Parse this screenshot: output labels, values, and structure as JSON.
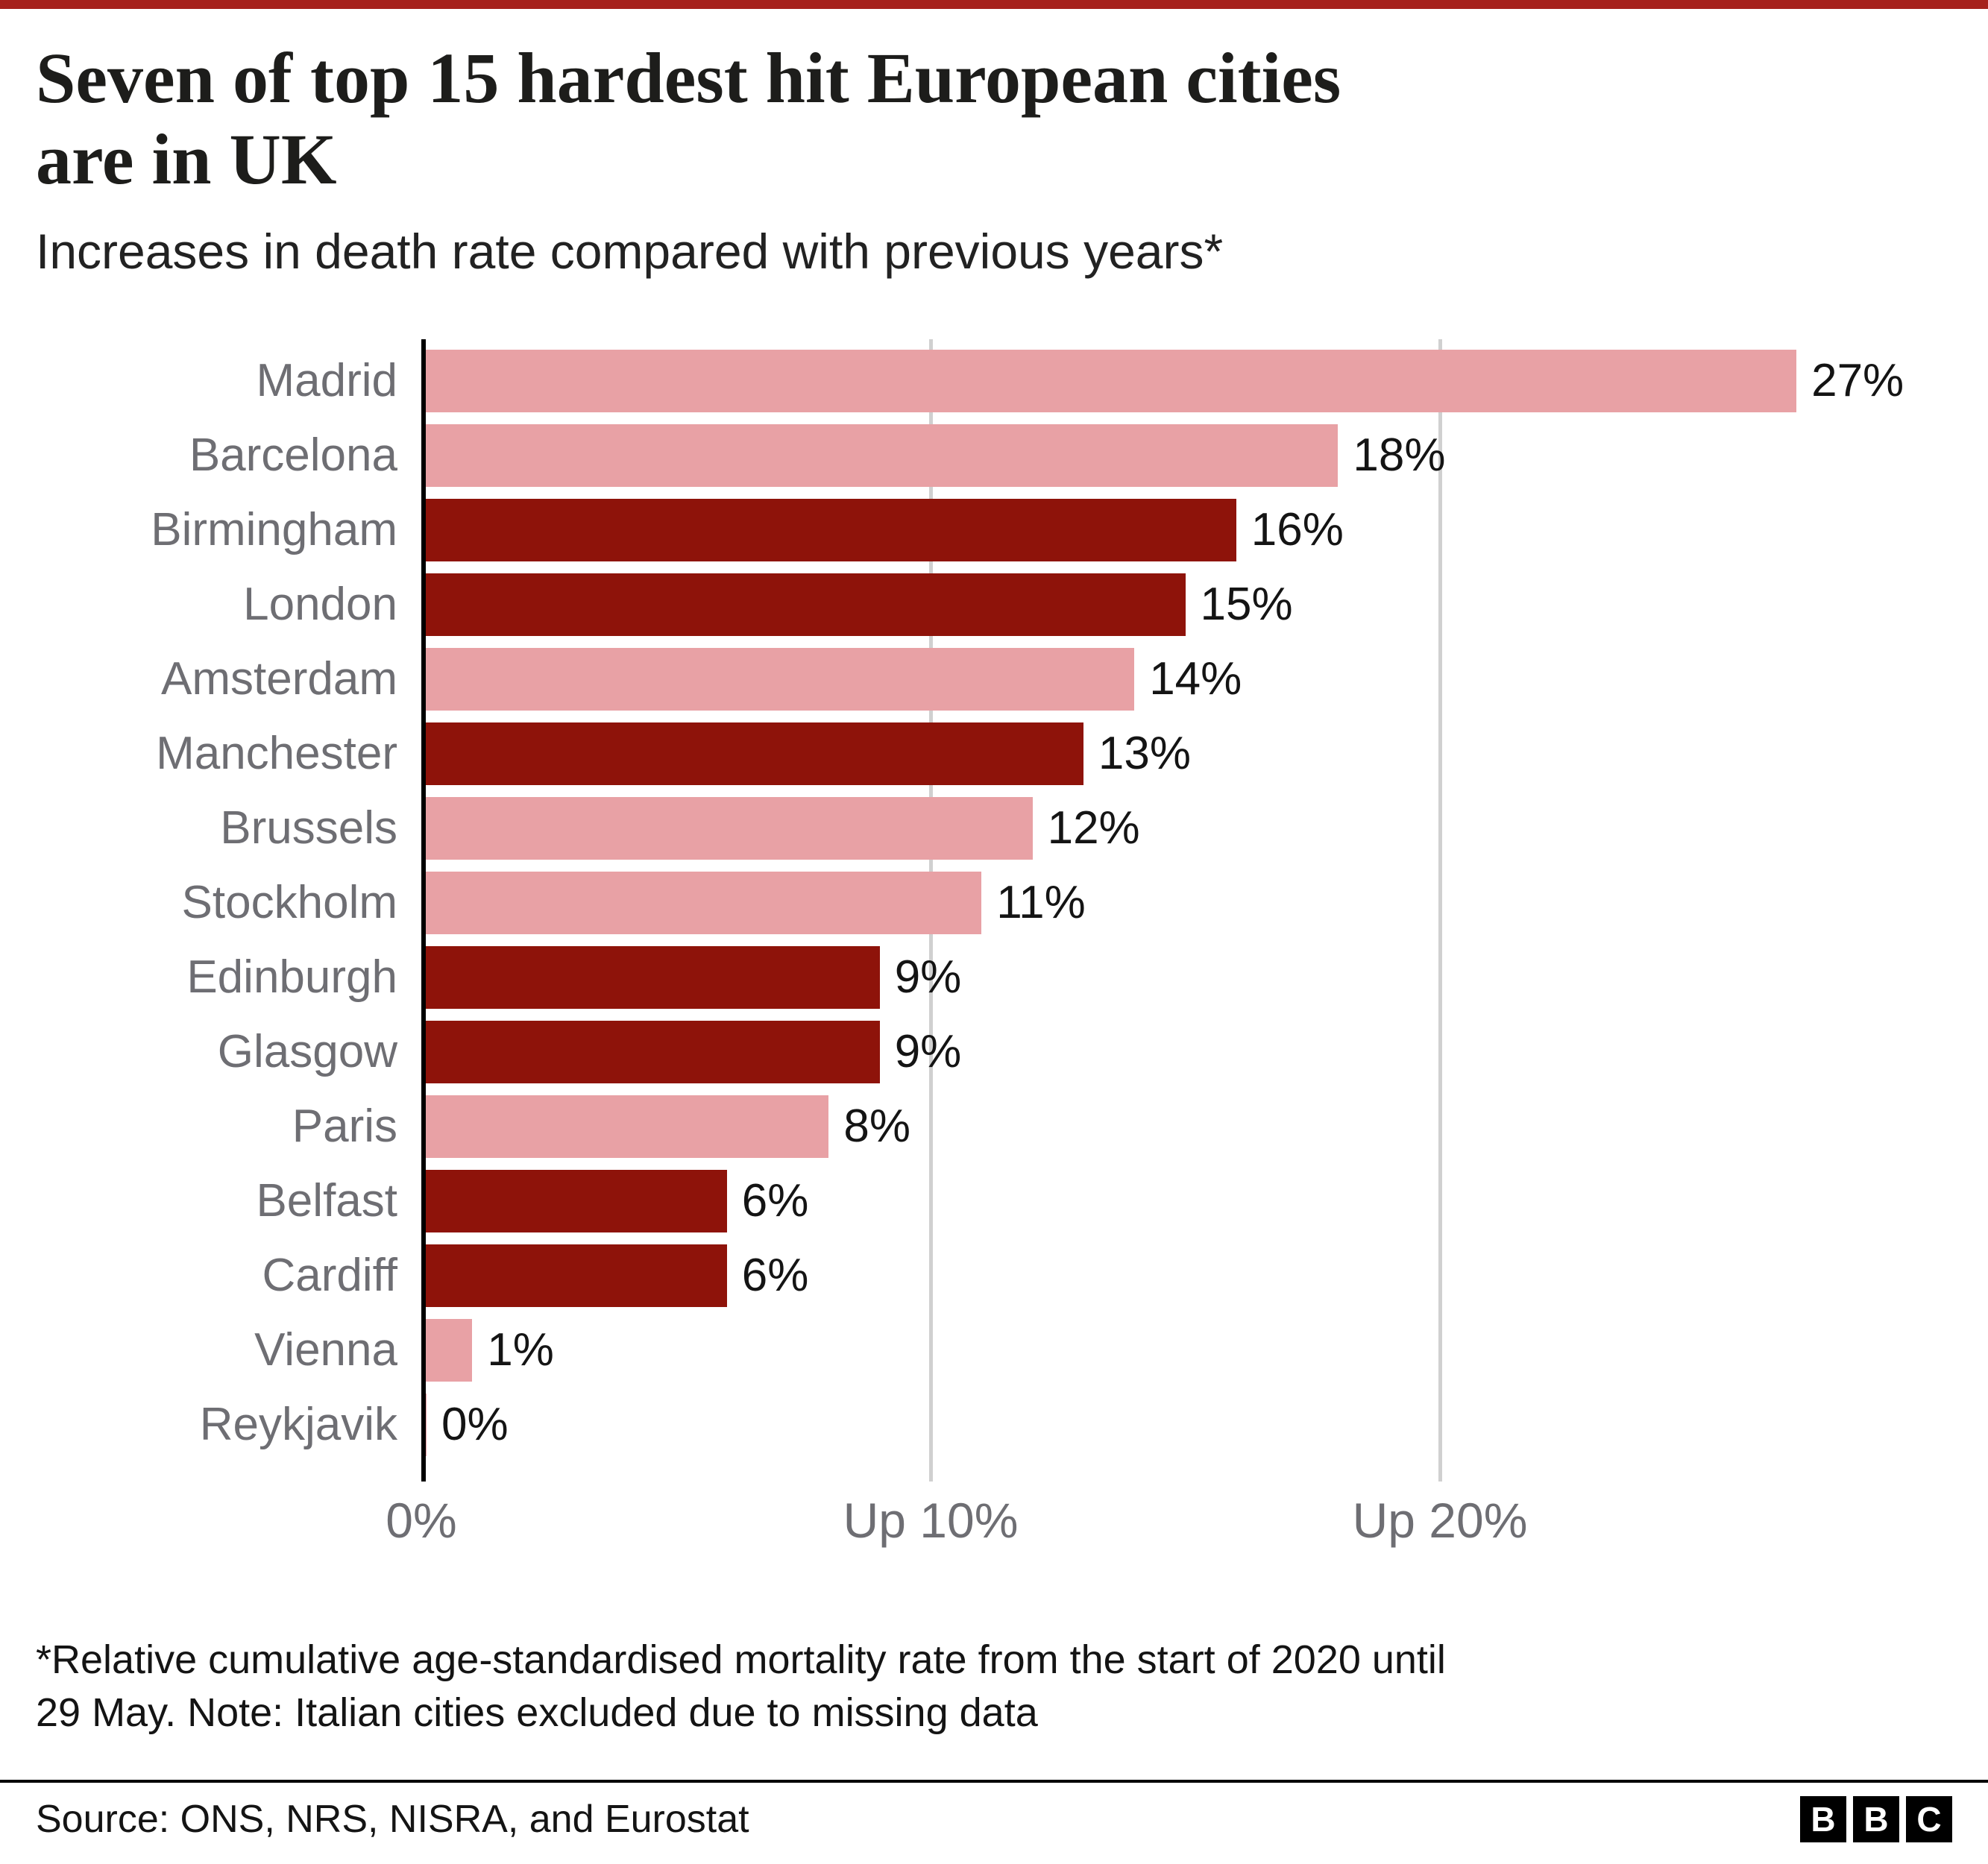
{
  "chart_data": {
    "type": "bar",
    "orientation": "horizontal",
    "title": "Seven of top 15 hardest hit European cities are in UK",
    "title_lines": [
      "Seven of top 15 hardest hit European cities",
      "are in UK"
    ],
    "subtitle": "Increases in death rate compared with previous years*",
    "categories": [
      "Madrid",
      "Barcelona",
      "Birmingham",
      "London",
      "Amsterdam",
      "Manchester",
      "Brussels",
      "Stockholm",
      "Edinburgh",
      "Glasgow",
      "Paris",
      "Belfast",
      "Cardiff",
      "Vienna",
      "Reykjavik"
    ],
    "values": [
      27,
      18,
      16,
      15,
      14,
      13,
      12,
      11,
      9,
      9,
      8,
      6,
      6,
      1,
      0
    ],
    "value_labels": [
      "27%",
      "18%",
      "16%",
      "15%",
      "14%",
      "13%",
      "12%",
      "11%",
      "9%",
      "9%",
      "8%",
      "6%",
      "6%",
      "1%",
      "0%"
    ],
    "groups": [
      "non-uk",
      "non-uk",
      "uk",
      "uk",
      "non-uk",
      "uk",
      "non-uk",
      "non-uk",
      "uk",
      "uk",
      "non-uk",
      "uk",
      "uk",
      "non-uk",
      "non-uk"
    ],
    "x_axis": {
      "ticks": [
        "0%",
        "Up 10%",
        "Up 20%"
      ],
      "tick_values": [
        0,
        10,
        20
      ],
      "max": 28
    },
    "grid": "vertical"
  },
  "footnote": {
    "lines": [
      "*Relative cumulative age-standardised mortality rate from the start of 2020 until",
      "29 May. Note: Italian cities excluded due to missing data"
    ]
  },
  "source": {
    "text": "Source: ONS, NRS, NISRA, and Eurostat"
  },
  "logo": {
    "letters": [
      "B",
      "B",
      "C"
    ]
  },
  "colors": {
    "uk_bar": "#8e130a",
    "other_bar": "#e8a1a5",
    "top_strip": "#a6211c",
    "axis": "#000000",
    "gridline": "#d0d0d0",
    "city_label": "#6e6e73",
    "value_label": "#141414"
  }
}
